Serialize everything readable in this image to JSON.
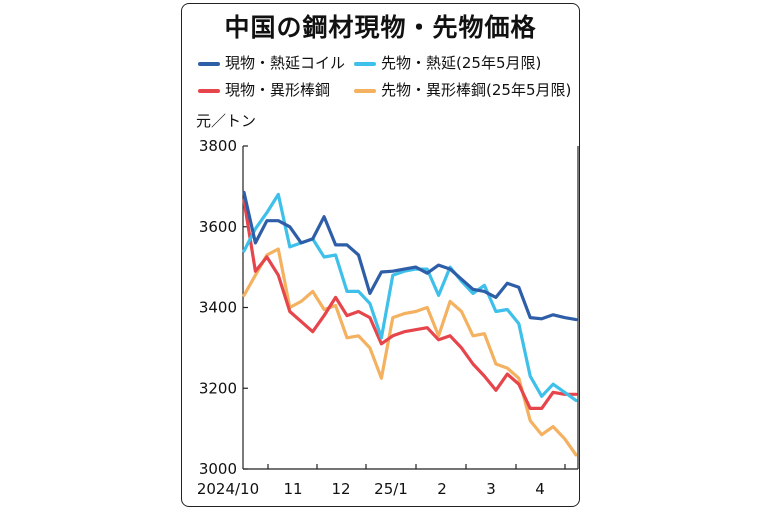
{
  "chart_data": {
    "type": "line",
    "title": "中国の鋼材現物・先物価格",
    "ylabel": "元／トン",
    "ylim": [
      3000,
      3800
    ],
    "yticks": [
      "3000",
      "3200",
      "3400",
      "3600",
      "3800"
    ],
    "xtick_labels": [
      "2024/10",
      "11",
      "12",
      "25/1",
      "2",
      "3",
      "4"
    ],
    "grid": false,
    "legend_position": "top",
    "series": [
      {
        "name": "現物・熱延コイル",
        "color": "#2f5ea8",
        "values": [
          3685,
          3560,
          3615,
          3615,
          3600,
          3560,
          3570,
          3625,
          3555,
          3555,
          3530,
          3435,
          3488,
          3490,
          3495,
          3500,
          3485,
          3505,
          3495,
          3470,
          3445,
          3440,
          3425,
          3460,
          3450,
          3375,
          3372,
          3382,
          3375,
          3370
        ]
      },
      {
        "name": "先物・熱延(25年5月限)",
        "color": "#3ec0ea",
        "values": [
          3540,
          3595,
          3635,
          3680,
          3550,
          3560,
          3570,
          3525,
          3530,
          3440,
          3440,
          3410,
          3325,
          3480,
          3490,
          3495,
          3495,
          3430,
          3500,
          3465,
          3435,
          3455,
          3390,
          3395,
          3360,
          3230,
          3180,
          3210,
          3190,
          3170
        ]
      },
      {
        "name": "現物・異形棒鋼",
        "color": "#e6454c",
        "values": [
          3665,
          3490,
          3525,
          3480,
          3390,
          3365,
          3340,
          3380,
          3425,
          3380,
          3390,
          3375,
          3310,
          3330,
          3340,
          3345,
          3350,
          3320,
          3330,
          3300,
          3260,
          3230,
          3195,
          3235,
          3210,
          3150,
          3150,
          3190,
          3185,
          3185
        ]
      },
      {
        "name": "先物・異形棒鋼(25年5月限)",
        "color": "#f4b160",
        "values": [
          3430,
          3480,
          3530,
          3545,
          3400,
          3415,
          3440,
          3395,
          3405,
          3325,
          3330,
          3300,
          3225,
          3375,
          3385,
          3390,
          3400,
          3330,
          3415,
          3390,
          3330,
          3335,
          3260,
          3250,
          3225,
          3120,
          3085,
          3105,
          3075,
          3035
        ]
      }
    ]
  }
}
